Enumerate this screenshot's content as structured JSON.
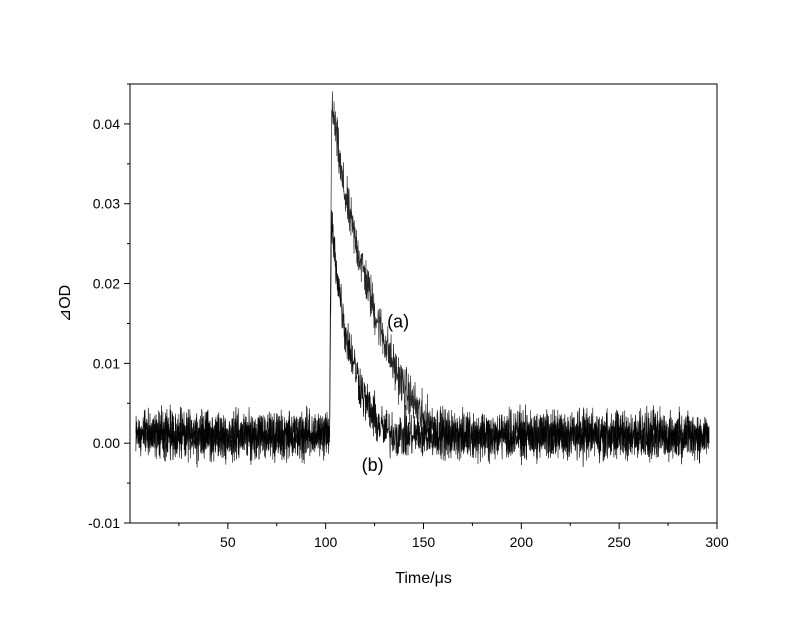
{
  "chart_data": {
    "type": "line",
    "title": "",
    "xlabel": "Time/μs",
    "ylabel": "⊿OD",
    "xlim": [
      0,
      300
    ],
    "ylim": [
      -0.01,
      0.045
    ],
    "x_ticks": [
      50,
      100,
      150,
      200,
      250,
      300
    ],
    "x_tick_labels": [
      "50",
      "100",
      "150",
      "200",
      "250",
      "300"
    ],
    "y_ticks": [
      -0.01,
      0.0,
      0.01,
      0.02,
      0.03,
      0.04
    ],
    "y_tick_labels": [
      "-0.01",
      "0.00",
      "0.01",
      "0.02",
      "0.03",
      "0.04"
    ],
    "grid": false,
    "legend": "none",
    "line_color": "#000000",
    "series": [
      {
        "x": [
          3,
          30,
          60,
          90,
          101,
          102,
          103,
          104,
          106,
          108,
          110,
          115,
          120,
          125,
          130,
          135,
          140,
          150,
          160,
          170,
          200,
          250,
          296
        ],
        "y": [
          0.001,
          0.001,
          0.001,
          0.001,
          0.001,
          0.001,
          0.041,
          0.041,
          0.0375,
          0.0335,
          0.031,
          0.0255,
          0.021,
          0.0165,
          0.013,
          0.0095,
          0.007,
          0.003,
          0.0015,
          0.001,
          0.001,
          0.001,
          0.001
        ]
      },
      {
        "x": [
          3,
          30,
          60,
          90,
          101,
          102,
          103,
          104,
          106,
          108,
          110,
          115,
          120,
          125,
          130,
          140,
          150,
          200,
          250,
          296
        ],
        "y": [
          0.001,
          0.001,
          0.001,
          0.001,
          0.001,
          0.001,
          0.028,
          0.025,
          0.021,
          0.0175,
          0.014,
          0.0095,
          0.0055,
          0.003,
          0.0015,
          0.001,
          0.001,
          0.001,
          0.001,
          0.001
        ]
      }
    ],
    "annotations": [
      {
        "text": "(a)",
        "x": 137,
        "y": 0.0145
      },
      {
        "text": "(b)",
        "x": 124,
        "y": -0.0035
      }
    ]
  }
}
